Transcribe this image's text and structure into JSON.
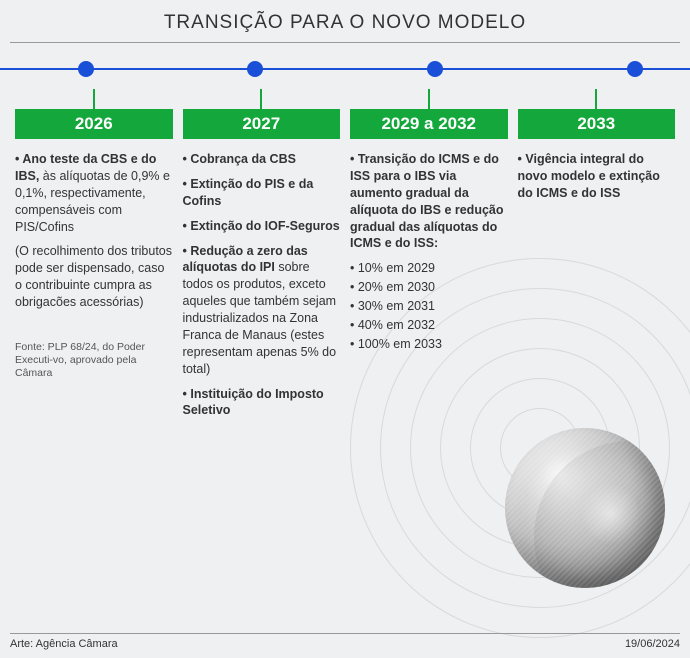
{
  "title": "TRANSIÇÃO PARA O NOVO MODELO",
  "colors": {
    "accent_green": "#14a83c",
    "accent_blue": "#1a4fd8",
    "background": "#eef0f2",
    "text": "#333333"
  },
  "timeline": {
    "dot_positions_pct": [
      12.5,
      37,
      63,
      92
    ]
  },
  "columns": [
    {
      "year": "2026",
      "items": [
        {
          "html": "<b>Ano teste da CBS e do IBS,</b> às alíquotas de 0,9% e 0,1%, respectivamente, compensáveis com PIS/Cofins"
        }
      ],
      "note": "(O recolhimento dos tributos pode ser dispensado, caso o contribuinte cumpra as obrigacões acessórias)",
      "source": "Fonte: PLP 68/24, do Poder Executi-vo, aprovado pela Câmara"
    },
    {
      "year": "2027",
      "items": [
        {
          "html": "<b>Cobrança da CBS</b>"
        },
        {
          "html": "<b>Extinção do PIS e da Cofins</b>"
        },
        {
          "html": "<b>Extinção do IOF-Seguros</b>"
        },
        {
          "html": "<b>Redução a zero das alíquotas do IPI</b> sobre todos os produtos, exceto aqueles que também sejam industrializados na Zona Franca de Manaus (estes representam apenas 5% do total)"
        },
        {
          "html": "<b>Instituição do Imposto Seletivo</b>"
        }
      ]
    },
    {
      "year": "2029 a 2032",
      "items": [
        {
          "html": "<b>Transição do ICMS e do ISS para o IBS via aumento gradual da alíquota do IBS e redução gradual das alíquotas do ICMS e do ISS:</b>"
        }
      ],
      "sub": [
        "10% em 2029",
        "20% em 2030",
        "30% em 2031",
        "40% em 2032",
        "100% em 2033"
      ]
    },
    {
      "year": "2033",
      "items": [
        {
          "html": "<b>Vigência integral do novo modelo e extinção do ICMS e do ISS</b>"
        }
      ]
    }
  ],
  "footer": {
    "credit": "Arte: Agência Câmara",
    "date": "19/06/2024"
  }
}
